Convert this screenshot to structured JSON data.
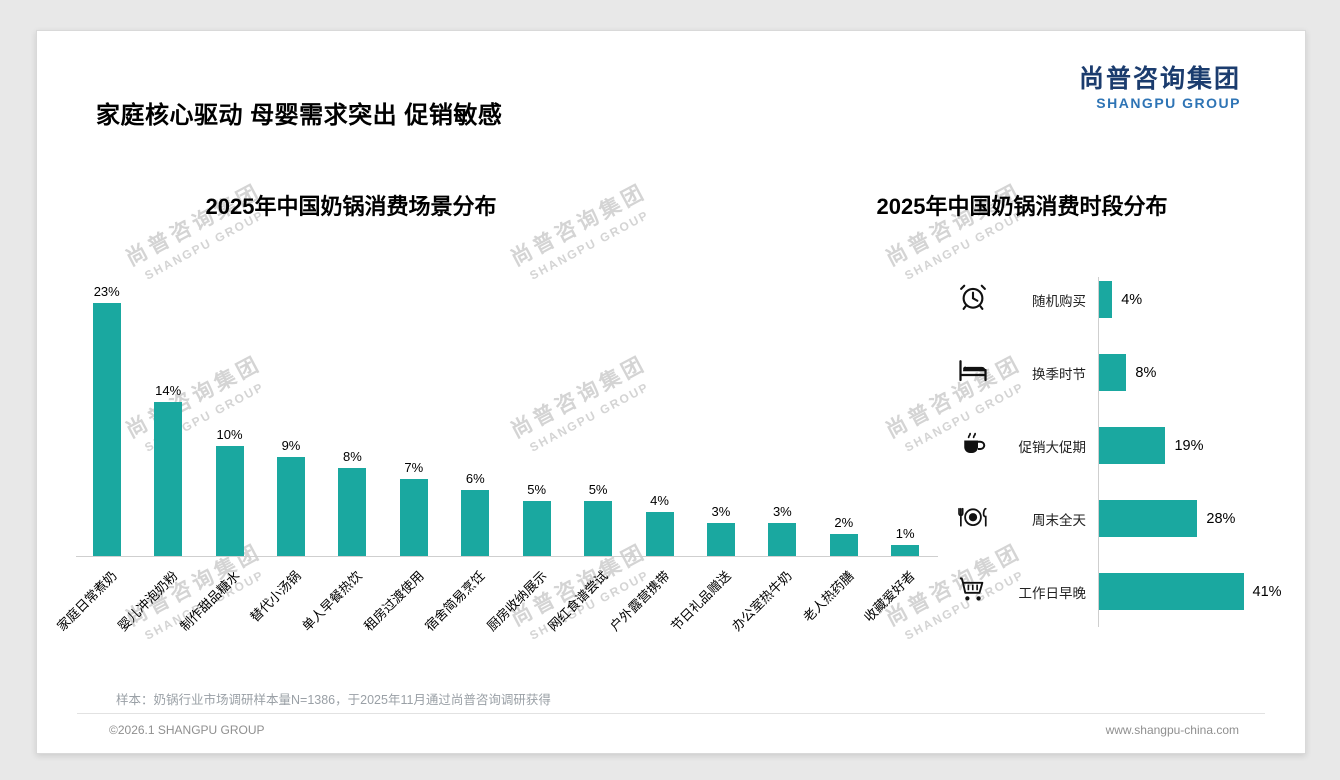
{
  "slide": {
    "title": "家庭核心驱动 母婴需求突出 促销敏感",
    "logo": {
      "cn": "尚普咨询集团",
      "en": "SHANGPU GROUP"
    },
    "watermark": {
      "cn": "尚普咨询集团",
      "en": "SHANGPU GROUP"
    },
    "footnote": "样本：奶锅行业市场调研样本量N=1386，于2025年11月通过尚普咨询调研获得",
    "footer_left": "©2026.1 SHANGPU GROUP",
    "footer_right": "www.shangpu-china.com"
  },
  "chart_data": [
    {
      "type": "bar",
      "orientation": "vertical",
      "title": "2025年中国奶锅消费场景分布",
      "categories": [
        "家庭日常煮奶",
        "婴儿冲泡奶粉",
        "制作甜品糖水",
        "替代小汤锅",
        "单人早餐热饮",
        "租房过渡使用",
        "宿舍简易烹饪",
        "厨房收纳展示",
        "网红食谱尝试",
        "户外露营携带",
        "节日礼品赠送",
        "办公室热牛奶",
        "老人热药膳",
        "收藏爱好者"
      ],
      "values": [
        23,
        14,
        10,
        9,
        8,
        7,
        6,
        5,
        5,
        4,
        3,
        3,
        2,
        1
      ],
      "unit": "%",
      "bar_color": "#1aa8a0",
      "ylim": [
        0,
        25
      ],
      "data_labels": true,
      "grid": false
    },
    {
      "type": "bar",
      "orientation": "horizontal",
      "title": "2025年中国奶锅消费时段分布",
      "categories": [
        "随机购买",
        "换季时节",
        "促销大促期",
        "周末全天",
        "工作日早晚"
      ],
      "values": [
        4,
        8,
        19,
        28,
        41
      ],
      "icons": [
        "alarm-clock",
        "bed",
        "coffee-cup",
        "dining",
        "shopping-cart"
      ],
      "unit": "%",
      "bar_color": "#1aa8a0",
      "xlim": [
        0,
        45
      ],
      "data_labels": true,
      "grid": false
    }
  ]
}
